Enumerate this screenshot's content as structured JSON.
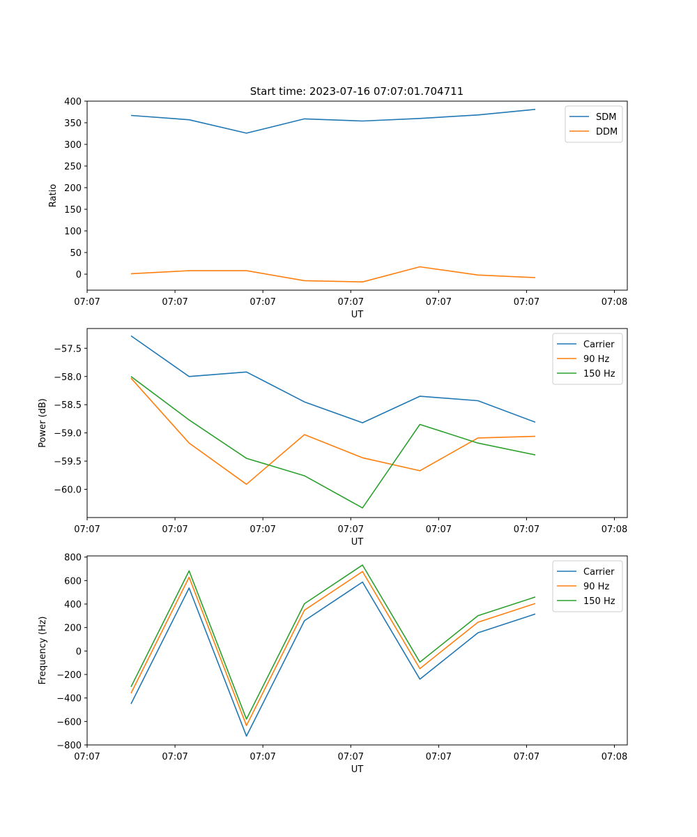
{
  "figure": {
    "title": "Start time: 2023-07-16 07:07:01.704711"
  },
  "colors": {
    "blue": "#1f77b4",
    "orange": "#ff7f0e",
    "green": "#2ca02c"
  },
  "chart_data": [
    {
      "id": "ratio",
      "type": "line",
      "xlabel": "UT",
      "ylabel": "Ratio",
      "xlim": [
        0,
        9.22
      ],
      "ylim": [
        -37,
        400
      ],
      "x": [
        0.75,
        1.74,
        2.72,
        3.71,
        4.7,
        5.68,
        6.67,
        7.65
      ],
      "x_tick_values": [
        0,
        1.5,
        3,
        4.5,
        6,
        7.5,
        9
      ],
      "x_tick_labels": [
        "07:07",
        "07:07",
        "07:07",
        "07:07",
        "07:07",
        "07:07",
        "07:08"
      ],
      "y_ticks": [
        0,
        50,
        100,
        150,
        200,
        250,
        300,
        350,
        400
      ],
      "y_tick_labels": [
        "0",
        "50",
        "100",
        "150",
        "200",
        "250",
        "300",
        "350",
        "400"
      ],
      "legend_position": "top-right",
      "series": [
        {
          "name": "SDM",
          "color": "blue",
          "values": [
            367,
            357,
            326,
            359,
            354,
            360,
            368,
            381
          ]
        },
        {
          "name": "DDM",
          "color": "orange",
          "values": [
            1,
            8,
            8,
            -15,
            -18,
            17,
            -2,
            -8
          ]
        }
      ]
    },
    {
      "id": "power",
      "type": "line",
      "xlabel": "UT",
      "ylabel": "Power (dB)",
      "xlim": [
        0,
        9.22
      ],
      "ylim": [
        -60.5,
        -57.15
      ],
      "x": [
        0.75,
        1.74,
        2.72,
        3.71,
        4.7,
        5.68,
        6.67,
        7.65
      ],
      "x_tick_values": [
        0,
        1.5,
        3,
        4.5,
        6,
        7.5,
        9
      ],
      "x_tick_labels": [
        "07:07",
        "07:07",
        "07:07",
        "07:07",
        "07:07",
        "07:07",
        "07:08"
      ],
      "y_ticks": [
        -57.5,
        -58,
        -58.5,
        -59,
        -59.5,
        -60
      ],
      "y_tick_labels": [
        "−57.5",
        "−58.0",
        "−58.5",
        "−59.0",
        "−59.5",
        "−60.0"
      ],
      "legend_position": "top-right",
      "series": [
        {
          "name": "Carrier",
          "color": "blue",
          "values": [
            -57.28,
            -58.0,
            -57.92,
            -58.45,
            -58.82,
            -58.35,
            -58.43,
            -58.81
          ]
        },
        {
          "name": "90 Hz",
          "color": "orange",
          "values": [
            -58.03,
            -59.18,
            -59.91,
            -59.03,
            -59.44,
            -59.67,
            -59.09,
            -59.06
          ]
        },
        {
          "name": "150 Hz",
          "color": "green",
          "values": [
            -58.0,
            -58.77,
            -59.45,
            -59.76,
            -60.33,
            -58.85,
            -59.18,
            -59.39
          ]
        }
      ]
    },
    {
      "id": "frequency",
      "type": "line",
      "xlabel": "UT",
      "ylabel": "Frequency (Hz)",
      "xlim": [
        0,
        9.22
      ],
      "ylim": [
        -800,
        810
      ],
      "x": [
        0.75,
        1.74,
        2.72,
        3.71,
        4.7,
        5.68,
        6.67,
        7.65
      ],
      "x_tick_values": [
        0,
        1.5,
        3,
        4.5,
        6,
        7.5,
        9
      ],
      "x_tick_labels": [
        "07:07",
        "07:07",
        "07:07",
        "07:07",
        "07:07",
        "07:07",
        "07:08"
      ],
      "y_ticks": [
        -800,
        -600,
        -400,
        -200,
        0,
        200,
        400,
        600,
        800
      ],
      "y_tick_labels": [
        "−800",
        "−600",
        "−400",
        "−200",
        "0",
        "200",
        "400",
        "600",
        "800"
      ],
      "legend_position": "top-right",
      "series": [
        {
          "name": "Carrier",
          "color": "blue",
          "values": [
            -450,
            537,
            -725,
            258,
            587,
            -240,
            155,
            315
          ]
        },
        {
          "name": "90 Hz",
          "color": "orange",
          "values": [
            -360,
            628,
            -635,
            348,
            677,
            -150,
            245,
            405
          ]
        },
        {
          "name": "150 Hz",
          "color": "green",
          "values": [
            -305,
            683,
            -580,
            403,
            732,
            -95,
            300,
            460
          ]
        }
      ]
    }
  ]
}
